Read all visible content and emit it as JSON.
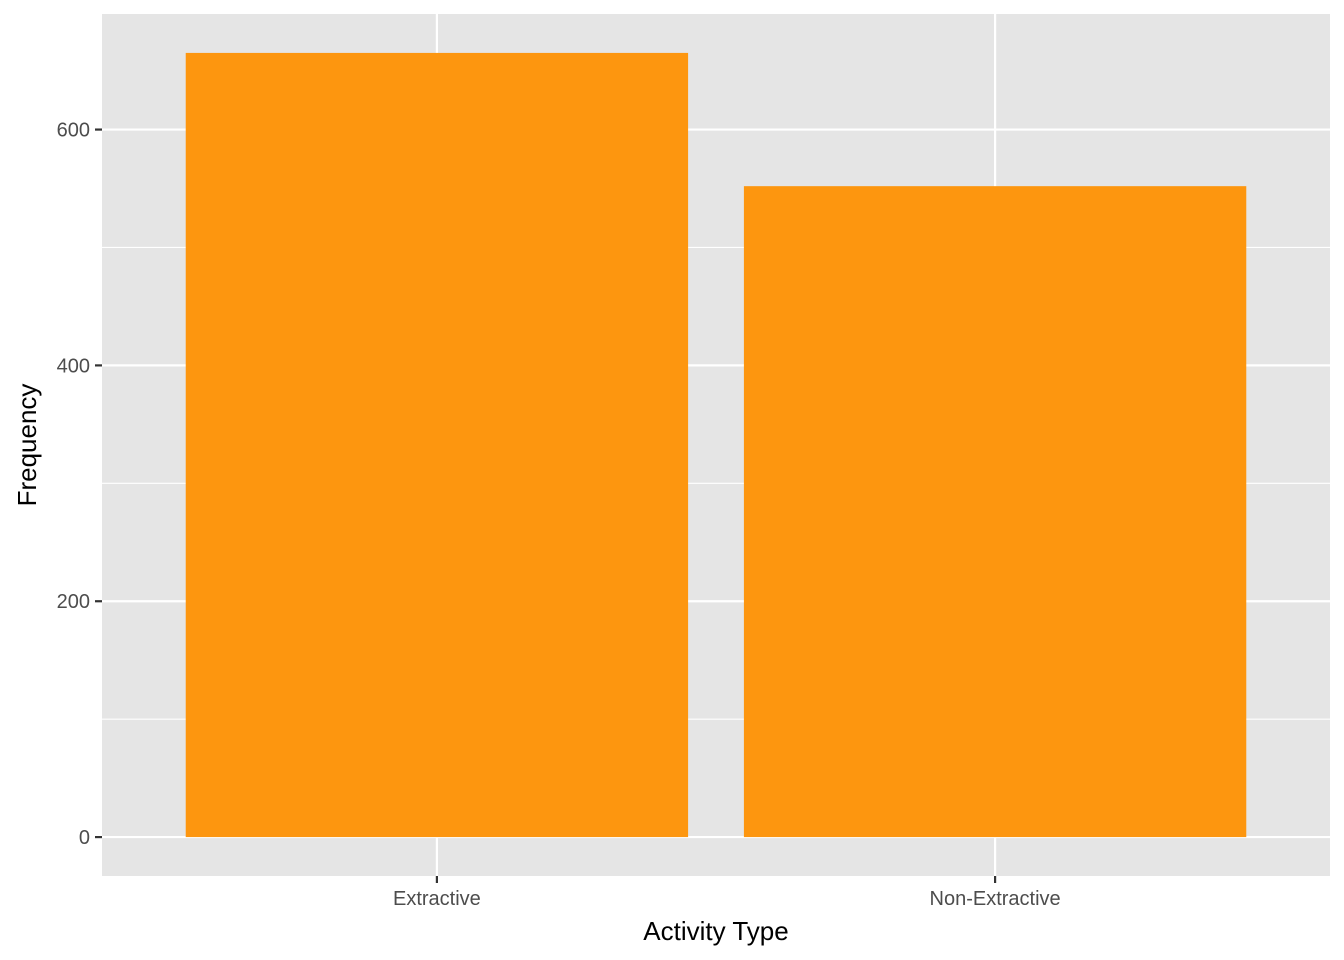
{
  "chart_data": {
    "type": "bar",
    "title": "",
    "xlabel": "Activity Type",
    "ylabel": "Frequency",
    "categories": [
      "Extractive",
      "Non-Extractive"
    ],
    "values": [
      665,
      552
    ],
    "ylim": [
      -33,
      698
    ],
    "yticks": [
      0,
      200,
      400,
      600
    ],
    "ytick_labels": [
      "0",
      "200",
      "400",
      "600"
    ],
    "y_minor_ticks": [
      100,
      300,
      500
    ],
    "grid": true,
    "legend": "none",
    "colors": {
      "bar": "#fd960f",
      "panel": "#e5e5e5",
      "grid": "#ffffff",
      "tick_text": "#4d4d4d",
      "tick_mark": "#333333",
      "axis_title": "#000000"
    }
  }
}
